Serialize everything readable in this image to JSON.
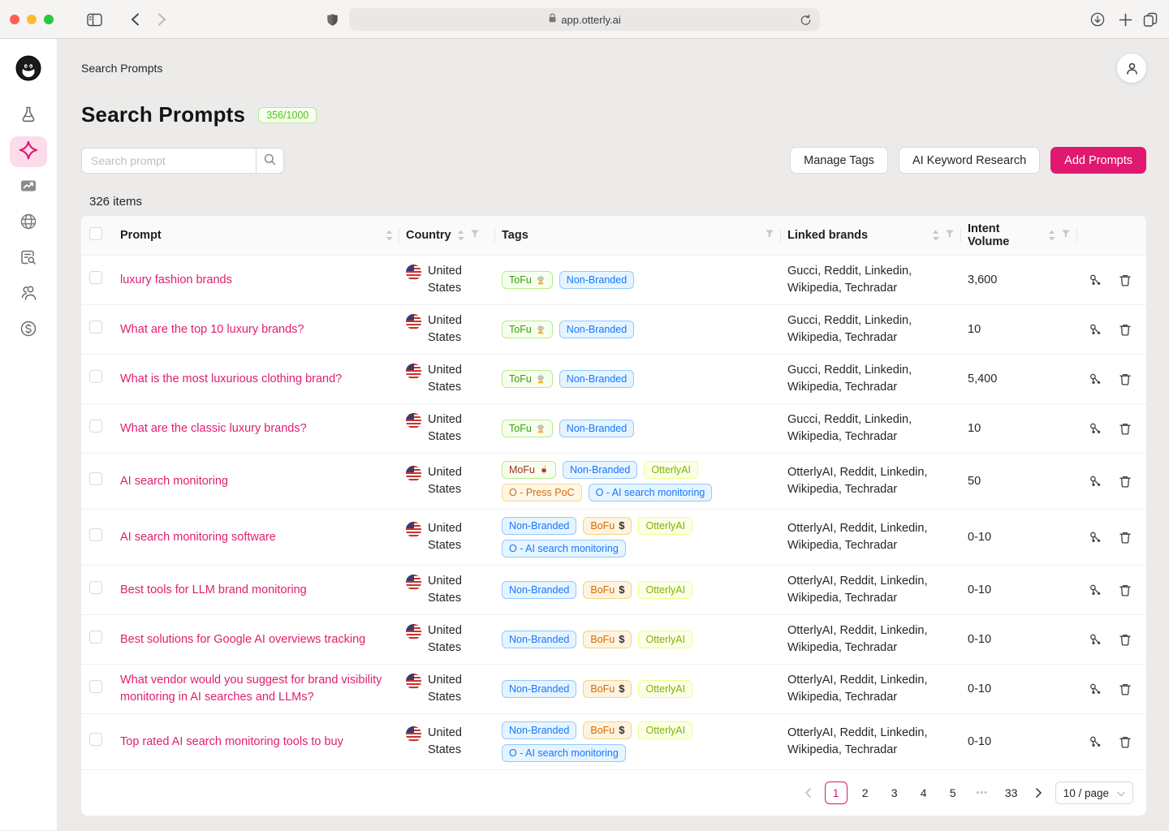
{
  "browser": {
    "url": "app.otterly.ai"
  },
  "sidebar": {
    "logo_icon": "otter-logo",
    "items": [
      {
        "icon": "flask-icon",
        "active": false
      },
      {
        "icon": "sparkle-icon",
        "active": true
      },
      {
        "icon": "chart-icon",
        "active": false
      },
      {
        "icon": "globe-icon",
        "active": false
      },
      {
        "icon": "doc-search-icon",
        "active": false
      },
      {
        "icon": "users-icon",
        "active": false
      },
      {
        "icon": "dollar-icon",
        "active": false
      }
    ]
  },
  "topbar": {
    "breadcrumb": "Search Prompts"
  },
  "header": {
    "title": "Search Prompts",
    "badge": "356/1000"
  },
  "toolbar": {
    "search_placeholder": "Search prompt",
    "manage_tags_label": "Manage Tags",
    "ai_keyword_research_label": "AI Keyword Research",
    "add_prompts_label": "Add Prompts"
  },
  "table": {
    "items_count": "326 items",
    "columns": [
      "Prompt",
      "Country",
      "Tags",
      "Linked brands",
      "Intent Volume"
    ],
    "rows": [
      {
        "prompt": "luxury fashion brands",
        "country": "United States",
        "tags": [
          {
            "label": "ToFu",
            "style": "green",
            "icon": "elder"
          },
          {
            "label": "Non-Branded",
            "style": "blue"
          }
        ],
        "brands": "Gucci, Reddit, Linkedin, Wikipedia, Techradar",
        "volume": "3,600"
      },
      {
        "prompt": "What are the top 10 luxury brands?",
        "country": "United States",
        "tags": [
          {
            "label": "ToFu",
            "style": "green",
            "icon": "elder"
          },
          {
            "label": "Non-Branded",
            "style": "blue"
          }
        ],
        "brands": "Gucci, Reddit, Linkedin, Wikipedia, Techradar",
        "volume": "10"
      },
      {
        "prompt": "What is the most luxurious clothing brand?",
        "country": "United States",
        "tags": [
          {
            "label": "ToFu",
            "style": "green",
            "icon": "elder"
          },
          {
            "label": "Non-Branded",
            "style": "blue"
          }
        ],
        "brands": "Gucci, Reddit, Linkedin, Wikipedia, Techradar",
        "volume": "5,400"
      },
      {
        "prompt": "What are the classic luxury brands?",
        "country": "United States",
        "tags": [
          {
            "label": "ToFu",
            "style": "green",
            "icon": "elder"
          },
          {
            "label": "Non-Branded",
            "style": "blue"
          }
        ],
        "brands": "Gucci, Reddit, Linkedin, Wikipedia, Techradar",
        "volume": "10"
      },
      {
        "prompt": "AI search monitoring",
        "country": "United States",
        "tags": [
          {
            "label": "MoFu",
            "style": "mofu",
            "icon": "cup"
          },
          {
            "label": "Non-Branded",
            "style": "blue"
          },
          {
            "label": "OtterlyAI",
            "style": "lime"
          },
          {
            "label": "O - Press PoC",
            "style": "orange"
          },
          {
            "label": "O - AI search monitoring",
            "style": "blue"
          }
        ],
        "brands": "OtterlyAI, Reddit, Linkedin, Wikipedia, Techradar",
        "volume": "50"
      },
      {
        "prompt": "AI search monitoring software",
        "country": "United States",
        "tags": [
          {
            "label": "Non-Branded",
            "style": "blue"
          },
          {
            "label": "BoFu",
            "style": "gold",
            "icon": "dollar"
          },
          {
            "label": "OtterlyAI",
            "style": "lime"
          },
          {
            "label": "O - AI search monitoring",
            "style": "blue"
          }
        ],
        "brands": "OtterlyAI, Reddit, Linkedin, Wikipedia, Techradar",
        "volume": "0-10"
      },
      {
        "prompt": "Best tools for LLM brand monitoring",
        "country": "United States",
        "tags": [
          {
            "label": "Non-Branded",
            "style": "blue"
          },
          {
            "label": "BoFu",
            "style": "gold",
            "icon": "dollar"
          },
          {
            "label": "OtterlyAI",
            "style": "lime"
          }
        ],
        "brands": "OtterlyAI, Reddit, Linkedin, Wikipedia, Techradar",
        "volume": "0-10"
      },
      {
        "prompt": "Best solutions for Google AI overviews tracking",
        "country": "United States",
        "tags": [
          {
            "label": "Non-Branded",
            "style": "blue"
          },
          {
            "label": "BoFu",
            "style": "gold",
            "icon": "dollar"
          },
          {
            "label": "OtterlyAI",
            "style": "lime"
          }
        ],
        "brands": "OtterlyAI, Reddit, Linkedin, Wikipedia, Techradar",
        "volume": "0-10"
      },
      {
        "prompt": "What vendor would you suggest for brand visibility monitoring in AI searches and LLMs?",
        "country": "United States",
        "tags": [
          {
            "label": "Non-Branded",
            "style": "blue"
          },
          {
            "label": "BoFu",
            "style": "gold",
            "icon": "dollar"
          },
          {
            "label": "OtterlyAI",
            "style": "lime"
          }
        ],
        "brands": "OtterlyAI, Reddit, Linkedin, Wikipedia, Techradar",
        "volume": "0-10"
      },
      {
        "prompt": "Top rated AI search monitoring tools to buy",
        "country": "United States",
        "tags": [
          {
            "label": "Non-Branded",
            "style": "blue"
          },
          {
            "label": "BoFu",
            "style": "gold",
            "icon": "dollar"
          },
          {
            "label": "OtterlyAI",
            "style": "lime"
          },
          {
            "label": "O - AI search monitoring",
            "style": "blue"
          }
        ],
        "brands": "OtterlyAI, Reddit, Linkedin, Wikipedia, Techradar",
        "volume": "0-10"
      }
    ]
  },
  "pagination": {
    "pages": [
      {
        "label": "1",
        "active": true
      },
      {
        "label": "2"
      },
      {
        "label": "3"
      },
      {
        "label": "4"
      },
      {
        "label": "5"
      },
      {
        "label": "•••",
        "ellipsis": true
      },
      {
        "label": "33"
      }
    ],
    "page_size": "10 / page"
  },
  "colors": {
    "accent": "#e0186f",
    "badge_green": "#52c41a",
    "tag_blue": "#1677ff",
    "tag_lime": "#7cb305",
    "tag_orange": "#d46b08"
  }
}
